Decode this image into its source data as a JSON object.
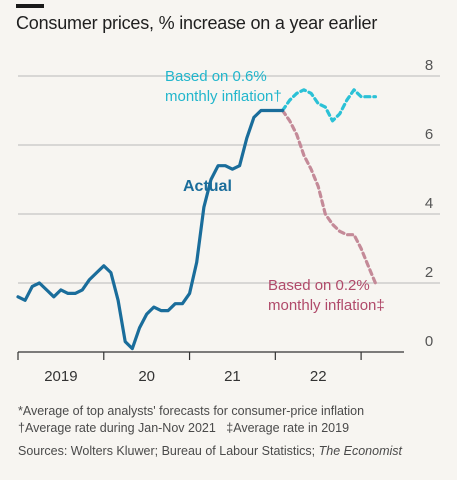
{
  "title": "Consumer prices, % increase on a year earlier",
  "notes": {
    "line1": "*Average of top analysts' forecasts for consumer-price inflation",
    "line2a": "†Average rate during Jan-Nov 2021",
    "line2b": "‡Average rate in 2019",
    "sources_prefix": "Sources: Wolters Kluwer; Bureau of Labour Statistics; ",
    "sources_italic": "The Economist"
  },
  "colors": {
    "actual": "#1a6d9b",
    "high": "#2bc1d6",
    "low": "#c48a98",
    "grid": "#b9b9b9",
    "axis": "#333333",
    "text": "#555555"
  },
  "chart_data": {
    "type": "line",
    "title": "Consumer prices, % increase on a year earlier",
    "ylim": [
      0,
      8
    ],
    "yticks": [
      "0",
      "2",
      "4",
      "6",
      "8"
    ],
    "xlim": [
      2018.5,
      2023.0
    ],
    "xtick_boundaries": [
      2018.5,
      2019.5,
      2020.5,
      2021.5,
      2022.5
    ],
    "xtick_labels": [
      {
        "label": "2019",
        "x": 2019.0
      },
      {
        "label": "20",
        "x": 2020.0
      },
      {
        "label": "21",
        "x": 2021.0
      },
      {
        "label": "22",
        "x": 2022.0
      }
    ],
    "grid": true,
    "series": [
      {
        "name": "Actual",
        "style": "solid",
        "x": [
          2018.5,
          2018.583,
          2018.667,
          2018.75,
          2018.833,
          2018.917,
          2019.0,
          2019.083,
          2019.167,
          2019.25,
          2019.333,
          2019.417,
          2019.5,
          2019.583,
          2019.667,
          2019.75,
          2019.833,
          2019.917,
          2020.0,
          2020.083,
          2020.167,
          2020.25,
          2020.333,
          2020.417,
          2020.5,
          2020.583,
          2020.667,
          2020.75,
          2020.833,
          2020.917,
          2021.0,
          2021.083,
          2021.167,
          2021.25,
          2021.333,
          2021.417,
          2021.5,
          2021.583
        ],
        "y": [
          1.6,
          1.5,
          1.9,
          2.0,
          1.8,
          1.6,
          1.8,
          1.7,
          1.7,
          1.8,
          2.1,
          2.3,
          2.5,
          2.3,
          1.5,
          0.3,
          0.1,
          0.7,
          1.1,
          1.3,
          1.2,
          1.2,
          1.4,
          1.4,
          1.7,
          2.6,
          4.2,
          5.0,
          5.4,
          5.4,
          5.3,
          5.4,
          6.2,
          6.8,
          7.0,
          7.0,
          7.0,
          7.0
        ]
      },
      {
        "name": "Based on 0.6% monthly inflation†",
        "style": "dashed",
        "x": [
          2021.583,
          2021.667,
          2021.75,
          2021.833,
          2021.917,
          2022.0,
          2022.083,
          2022.167,
          2022.25,
          2022.333,
          2022.417,
          2022.5,
          2022.583,
          2022.667
        ],
        "y": [
          7.0,
          7.3,
          7.5,
          7.6,
          7.5,
          7.2,
          7.1,
          6.7,
          6.9,
          7.3,
          7.6,
          7.4,
          7.4,
          7.4
        ]
      },
      {
        "name": "Based on 0.2% monthly inflation‡",
        "style": "dashed",
        "x": [
          2021.583,
          2021.667,
          2021.75,
          2021.833,
          2021.917,
          2022.0,
          2022.083,
          2022.167,
          2022.25,
          2022.333,
          2022.417,
          2022.5,
          2022.583,
          2022.667
        ],
        "y": [
          7.0,
          6.7,
          6.3,
          5.7,
          5.3,
          4.8,
          4.0,
          3.7,
          3.5,
          3.4,
          3.4,
          3.0,
          2.5,
          2.0
        ]
      }
    ],
    "annotations": [
      {
        "text": "Actual",
        "series": 0
      },
      {
        "text_lines": [
          "Based on 0.6%",
          "monthly inflation†"
        ],
        "series": 1
      },
      {
        "text_lines": [
          "Based on 0.2%",
          "monthly inflation‡"
        ],
        "series": 2
      }
    ]
  }
}
